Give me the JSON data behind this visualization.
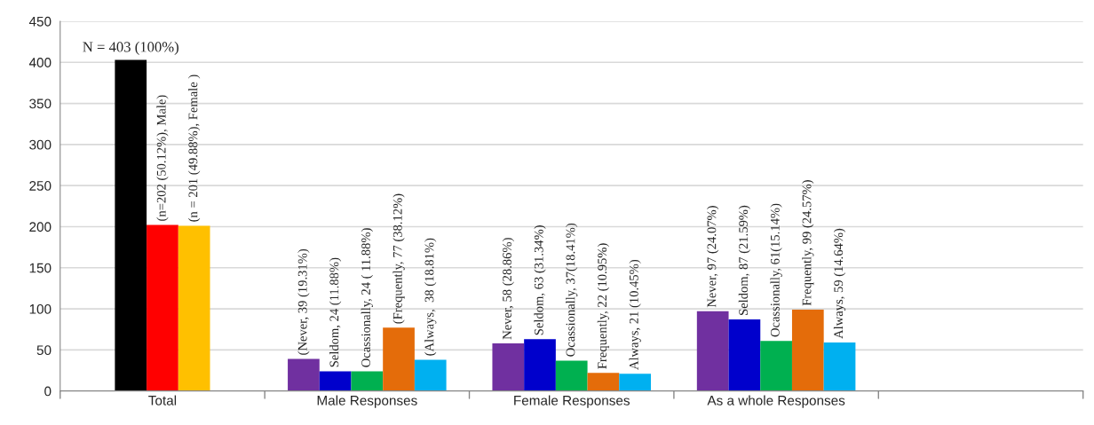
{
  "chart_data": {
    "type": "bar",
    "categories": [
      "Total",
      "Male Responses",
      "Female Responses",
      "As a whole Responses",
      null
    ],
    "ylim": [
      0,
      450
    ],
    "yticks": [
      0,
      50,
      100,
      150,
      200,
      250,
      300,
      350,
      400,
      450
    ],
    "grid": "y",
    "legend": false,
    "series": [
      {
        "color": "#000000",
        "values": [
          403,
          null,
          null,
          null,
          null
        ],
        "value_labels": [
          "N = 403 (100%)",
          null,
          null,
          null,
          null
        ]
      },
      {
        "color": "#ff0000",
        "values": [
          202,
          null,
          null,
          null,
          null
        ],
        "value_labels": [
          "(n=202 (50.12%), Male)",
          null,
          null,
          null,
          null
        ]
      },
      {
        "color": "#ffc000",
        "values": [
          201,
          null,
          null,
          null,
          null
        ],
        "value_labels": [
          "(n = 201 (49.88%), Female )",
          null,
          null,
          null,
          null
        ]
      },
      {
        "color": "#7030a0",
        "values": [
          null,
          39,
          58,
          97,
          null
        ],
        "value_labels": [
          null,
          "(Never, 39 (19.31%)",
          "Never, 58 (28.86%)",
          "Never, 97 (24.07%)",
          null
        ]
      },
      {
        "color": "#0000cc",
        "values": [
          null,
          24,
          63,
          87,
          null
        ],
        "value_labels": [
          null,
          "Seldom, 24 (11.88%)",
          "Seldom, 63 (31.34%)",
          "Seldom, 87 (21.59%)",
          null
        ]
      },
      {
        "color": "#00b050",
        "values": [
          null,
          24,
          37,
          61,
          null
        ],
        "value_labels": [
          null,
          "Ocassionally, 24 ( 11.88%)",
          "Ocassionally, 37(18.41%)",
          "Ocassionally, 61(15.14%)",
          null
        ]
      },
      {
        "color": "#e46c0a",
        "values": [
          null,
          77,
          22,
          99,
          null
        ],
        "value_labels": [
          null,
          "(Frequently, 77 (38.12%)",
          "Frequently, 22 (10.95%)",
          "Frequently, 99 (24.57%)",
          null
        ]
      },
      {
        "color": "#00b0f0",
        "values": [
          null,
          38,
          21,
          59,
          null
        ],
        "value_labels": [
          null,
          "(Always,  38 (18.81%)",
          "Always, 21 (10.45%)",
          "Always, 59 (14.64%)",
          null
        ]
      }
    ]
  }
}
